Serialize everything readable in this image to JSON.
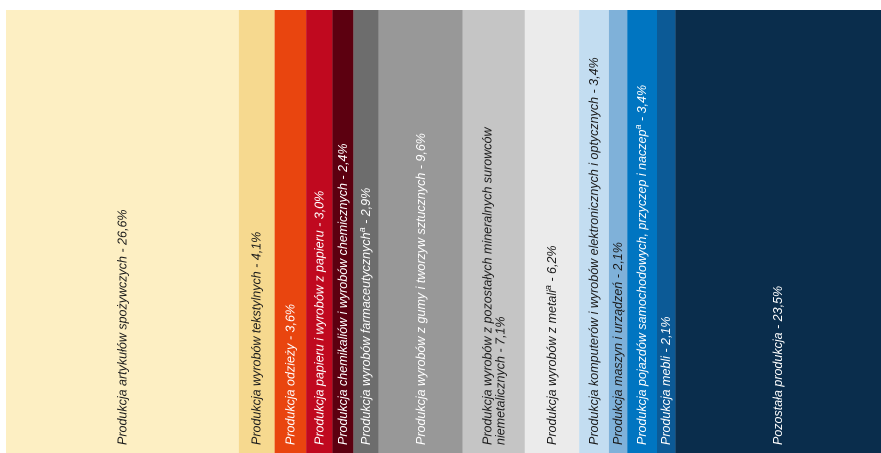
{
  "chart_data": {
    "type": "bar",
    "title": "",
    "xlabel": "",
    "ylabel": "",
    "series": [
      {
        "label": "Produkcja artykułów spożywczych - 26,6%",
        "value": 26.6,
        "color": "#fdefc3",
        "text_color": "#1a1a1a"
      },
      {
        "label": "Produkcja wyrobów tekstylnych - 4,1%",
        "value": 4.1,
        "color": "#f6d98f",
        "text_color": "#1a1a1a"
      },
      {
        "label": "Produkcja odzieży - 3,6%",
        "value": 3.6,
        "color": "#e9450f",
        "text_color": "#ffffff"
      },
      {
        "label": "Produkcja papieru i wyrobów z papieru - 3,0%",
        "value": 3.0,
        "color": "#c0091f",
        "text_color": "#ffffff"
      },
      {
        "label": "Produkcja chemikaliów i wyrobów chemicznych - 2,4%",
        "value": 2.4,
        "color": "#5c0010",
        "text_color": "#ffffff"
      },
      {
        "label": "Produkcja wyrobów farmaceutycznych",
        "superscript": "a",
        "suffix": " - 2,9%",
        "value": 2.9,
        "color": "#6d6d6d",
        "text_color": "#ffffff"
      },
      {
        "label": "Produkcja wyrobów z gumy i tworzyw sztucznych - 9,6%",
        "value": 9.6,
        "color": "#989898",
        "text_color": "#ffffff"
      },
      {
        "lines": [
          "Produkcja wyrobów z pozostałych mineralnych surowców",
          "niemetalicznych - 7,1%"
        ],
        "value": 7.1,
        "color": "#c5c5c5",
        "text_color": "#1a1a1a"
      },
      {
        "label": "Produkcja wyrobów z metali",
        "superscript": "a",
        "suffix": " - 6,2%",
        "value": 6.2,
        "color": "#ebebeb",
        "text_color": "#1a1a1a"
      },
      {
        "label": "Produkcja komputerów i wyrobów elektronicznych i optycznych - 3,4%",
        "value": 3.4,
        "color": "#c3ddf1",
        "text_color": "#1a1a1a"
      },
      {
        "label": "Produkcja maszyn i urządzeń - 2,1%",
        "value": 2.1,
        "color": "#7fb1d9",
        "text_color": "#1a1a1a"
      },
      {
        "label": "Produkcja pojazdów samochodowych, przyczep i naczep",
        "superscript": "a",
        "suffix": " - 3,4%",
        "value": 3.4,
        "color": "#0075c1",
        "text_color": "#ffffff"
      },
      {
        "label": "Produkcja mebli - 2,1%",
        "value": 2.1,
        "color": "#0c5a96",
        "text_color": "#ffffff"
      },
      {
        "label": "Pozostała produkcja - 23,5%",
        "value": 23.5,
        "color": "#0a2d4c",
        "text_color": "#ffffff"
      }
    ]
  }
}
